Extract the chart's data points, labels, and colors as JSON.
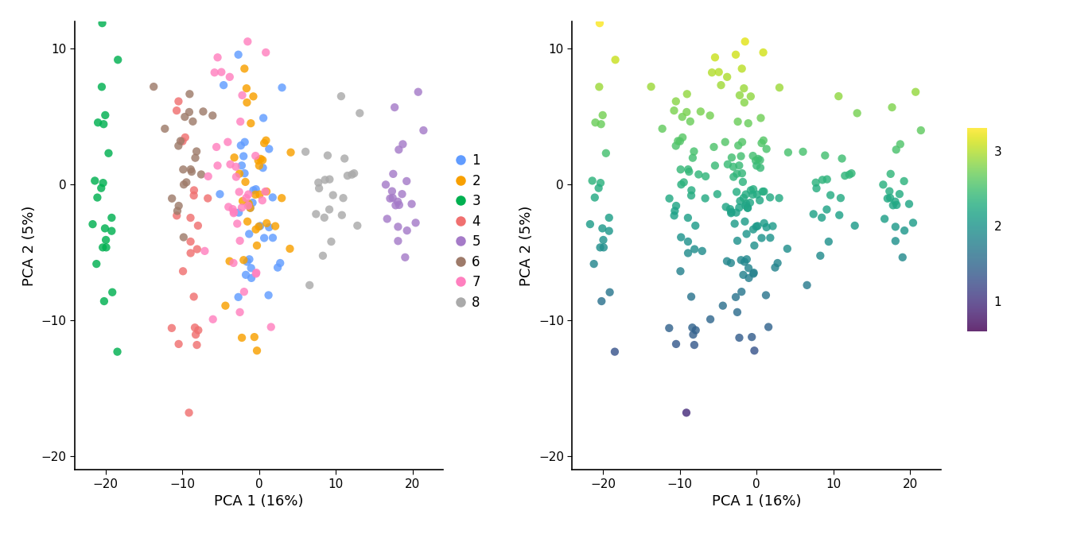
{
  "xlabel": "PCA 1 (16%)",
  "ylabel": "PCA 2 (5%)",
  "xlim": [
    -24,
    24
  ],
  "ylim": [
    -21,
    12
  ],
  "xticks": [
    -20,
    -10,
    0,
    10,
    20
  ],
  "yticks": [
    -20,
    -10,
    0,
    10
  ],
  "colors_map": {
    "1": "#619CFF",
    "2": "#F8A000",
    "3": "#00B050",
    "4": "#F07070",
    "5": "#A57BC8",
    "6": "#9E7B6A",
    "7": "#FF80BF",
    "8": "#AAAAAA"
  },
  "legend_labels": [
    "1",
    "2",
    "3",
    "4",
    "5",
    "6",
    "7",
    "8"
  ],
  "marker_size": 55,
  "alpha": 0.82,
  "cmap": "viridis",
  "colorbar_ticks": [
    1,
    2,
    3
  ],
  "sf_vmin": 0.6,
  "sf_vmax": 3.3
}
